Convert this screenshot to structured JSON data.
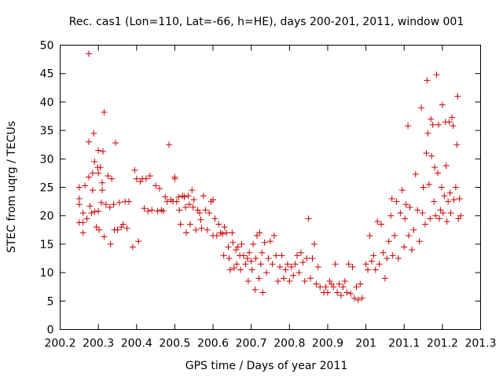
{
  "colors": {
    "series": "#cc0000",
    "axes": "#000000",
    "background": "#ffffff"
  },
  "chart_data": {
    "type": "scatter",
    "title": "Rec. cas1 (Lon=110, Lat=-66, h=HE), days 200-201, 2011, window 001",
    "xlabel": "GPS time / Days of year 2011",
    "ylabel": "STEC from uqrg / TECUs",
    "xlim": [
      200.2,
      201.3
    ],
    "ylim": [
      0,
      50
    ],
    "xticks": [
      200.2,
      200.3,
      200.4,
      200.5,
      200.6,
      200.7,
      200.8,
      200.9,
      201.0,
      201.1,
      201.2,
      201.3
    ],
    "xtick_labels": [
      "200.2",
      "200.3",
      "200.4",
      "200.5",
      "200.6",
      "200.7",
      "200.8",
      "200.9",
      "201",
      "201.1",
      "201.2",
      "201.3"
    ],
    "yticks": [
      0,
      5,
      10,
      15,
      20,
      25,
      30,
      35,
      40,
      45,
      50
    ],
    "ytick_labels": [
      "0",
      "5",
      "10",
      "15",
      "20",
      "25",
      "30",
      "35",
      "40",
      "45",
      "50"
    ],
    "marker": "+",
    "series": [
      {
        "name": "STEC",
        "points": [
          [
            200.25,
            25.0
          ],
          [
            200.25,
            23.0
          ],
          [
            200.25,
            22.0
          ],
          [
            200.25,
            18.8
          ],
          [
            200.26,
            20.5
          ],
          [
            200.26,
            18.8
          ],
          [
            200.26,
            17.0
          ],
          [
            200.265,
            25.3
          ],
          [
            200.27,
            19.5
          ],
          [
            200.275,
            48.5
          ],
          [
            200.275,
            33.0
          ],
          [
            200.275,
            26.8
          ],
          [
            200.278,
            21.7
          ],
          [
            200.282,
            20.5
          ],
          [
            200.285,
            27.5
          ],
          [
            200.285,
            24.5
          ],
          [
            200.288,
            34.5
          ],
          [
            200.29,
            29.5
          ],
          [
            200.29,
            20.7
          ],
          [
            200.295,
            18.0
          ],
          [
            200.298,
            28.5
          ],
          [
            200.3,
            27.5
          ],
          [
            200.3,
            31.5
          ],
          [
            200.3,
            20.8
          ],
          [
            200.302,
            17.5
          ],
          [
            200.305,
            28.5
          ],
          [
            200.308,
            22.3
          ],
          [
            200.31,
            24.5
          ],
          [
            200.31,
            25.8
          ],
          [
            200.312,
            31.3
          ],
          [
            200.315,
            38.2
          ],
          [
            200.315,
            16.3
          ],
          [
            200.32,
            22.0
          ],
          [
            200.325,
            27.0
          ],
          [
            200.33,
            21.5
          ],
          [
            200.332,
            15.0
          ],
          [
            200.335,
            26.5
          ],
          [
            200.34,
            22.0
          ],
          [
            200.342,
            17.5
          ],
          [
            200.345,
            32.8
          ],
          [
            200.35,
            17.5
          ],
          [
            200.355,
            22.3
          ],
          [
            200.36,
            18.0
          ],
          [
            200.365,
            18.5
          ],
          [
            200.37,
            22.5
          ],
          [
            200.375,
            17.8
          ],
          [
            200.38,
            22.5
          ],
          [
            200.39,
            14.5
          ],
          [
            200.395,
            28.0
          ],
          [
            200.4,
            26.5
          ],
          [
            200.405,
            15.5
          ],
          [
            200.41,
            26.0
          ],
          [
            200.415,
            26.5
          ],
          [
            200.42,
            21.3
          ],
          [
            200.425,
            26.5
          ],
          [
            200.43,
            20.8
          ],
          [
            200.435,
            27.0
          ],
          [
            200.44,
            21.0
          ],
          [
            200.45,
            25.3
          ],
          [
            200.455,
            20.8
          ],
          [
            200.46,
            24.8
          ],
          [
            200.465,
            21.0
          ],
          [
            200.47,
            20.8
          ],
          [
            200.475,
            23.3
          ],
          [
            200.48,
            22.5
          ],
          [
            200.485,
            32.5
          ],
          [
            200.49,
            22.8
          ],
          [
            200.495,
            22.5
          ],
          [
            200.5,
            26.8
          ],
          [
            200.5,
            26.5
          ],
          [
            200.505,
            22.5
          ],
          [
            200.51,
            23.3
          ],
          [
            200.512,
            21.0
          ],
          [
            200.515,
            18.5
          ],
          [
            200.52,
            23.5
          ],
          [
            200.525,
            23.3
          ],
          [
            200.528,
            21.5
          ],
          [
            200.53,
            17.0
          ],
          [
            200.535,
            23.5
          ],
          [
            200.538,
            22.0
          ],
          [
            200.54,
            18.5
          ],
          [
            200.545,
            24.5
          ],
          [
            200.548,
            21.5
          ],
          [
            200.55,
            22.8
          ],
          [
            200.555,
            17.5
          ],
          [
            200.56,
            21.0
          ],
          [
            200.565,
            20.5
          ],
          [
            200.568,
            19.3
          ],
          [
            200.57,
            17.8
          ],
          [
            200.575,
            23.5
          ],
          [
            200.58,
            21.0
          ],
          [
            200.585,
            17.5
          ],
          [
            200.59,
            20.5
          ],
          [
            200.595,
            22.5
          ],
          [
            200.6,
            22.8
          ],
          [
            200.6,
            16.5
          ],
          [
            200.605,
            19.5
          ],
          [
            200.61,
            16.5
          ],
          [
            200.615,
            18.5
          ],
          [
            200.62,
            17.0
          ],
          [
            200.625,
            16.8
          ],
          [
            200.628,
            13.0
          ],
          [
            200.63,
            18.0
          ],
          [
            200.635,
            17.0
          ],
          [
            200.64,
            14.5
          ],
          [
            200.642,
            12.5
          ],
          [
            200.645,
            10.5
          ],
          [
            200.65,
            17.0
          ],
          [
            200.652,
            15.3
          ],
          [
            200.655,
            10.8
          ],
          [
            200.66,
            14.0
          ],
          [
            200.662,
            11.5
          ],
          [
            200.665,
            14.5
          ],
          [
            200.67,
            13.0
          ],
          [
            200.672,
            10.5
          ],
          [
            200.675,
            15.0
          ],
          [
            200.68,
            13.0
          ],
          [
            200.685,
            11.5
          ],
          [
            200.69,
            12.5
          ],
          [
            200.692,
            8.5
          ],
          [
            200.695,
            13.5
          ],
          [
            200.7,
            12.0
          ],
          [
            200.702,
            10.5
          ],
          [
            200.705,
            15.0
          ],
          [
            200.71,
            7.0
          ],
          [
            200.712,
            12.5
          ],
          [
            200.715,
            16.5
          ],
          [
            200.72,
            9.0
          ],
          [
            200.722,
            17.0
          ],
          [
            200.725,
            11.5
          ],
          [
            200.728,
            13.5
          ],
          [
            200.73,
            6.5
          ],
          [
            200.735,
            15.3
          ],
          [
            200.74,
            10.0
          ],
          [
            200.745,
            12.5
          ],
          [
            200.75,
            15.5
          ],
          [
            200.755,
            11.5
          ],
          [
            200.76,
            16.5
          ],
          [
            200.765,
            13.0
          ],
          [
            200.77,
            8.5
          ],
          [
            200.775,
            11.0
          ],
          [
            200.78,
            13.0
          ],
          [
            200.785,
            9.0
          ],
          [
            200.79,
            10.5
          ],
          [
            200.795,
            11.5
          ],
          [
            200.8,
            8.5
          ],
          [
            200.805,
            11.0
          ],
          [
            200.81,
            9.5
          ],
          [
            200.815,
            11.5
          ],
          [
            200.82,
            13.0
          ],
          [
            200.825,
            10.0
          ],
          [
            200.83,
            13.5
          ],
          [
            200.835,
            11.8
          ],
          [
            200.84,
            8.5
          ],
          [
            200.845,
            12.5
          ],
          [
            200.85,
            19.5
          ],
          [
            200.855,
            9.0
          ],
          [
            200.86,
            12.5
          ],
          [
            200.865,
            15.0
          ],
          [
            200.87,
            8.0
          ],
          [
            200.875,
            11.0
          ],
          [
            200.88,
            7.5
          ],
          [
            200.89,
            6.5
          ],
          [
            200.895,
            7.5
          ],
          [
            200.9,
            6.5
          ],
          [
            200.905,
            8.5
          ],
          [
            200.91,
            8.0
          ],
          [
            200.915,
            7.5
          ],
          [
            200.92,
            11.5
          ],
          [
            200.925,
            6.5
          ],
          [
            200.93,
            8.0
          ],
          [
            200.935,
            6.0
          ],
          [
            200.94,
            7.5
          ],
          [
            200.945,
            8.5
          ],
          [
            200.95,
            6.5
          ],
          [
            200.955,
            11.5
          ],
          [
            200.96,
            6.3
          ],
          [
            200.965,
            11.0
          ],
          [
            200.97,
            5.5
          ],
          [
            200.975,
            7.5
          ],
          [
            200.98,
            5.2
          ],
          [
            200.985,
            8.0
          ],
          [
            200.99,
            5.5
          ],
          [
            201.0,
            11.5
          ],
          [
            201.005,
            10.5
          ],
          [
            201.01,
            16.5
          ],
          [
            201.015,
            12.0
          ],
          [
            201.02,
            13.0
          ],
          [
            201.025,
            10.5
          ],
          [
            201.03,
            19.0
          ],
          [
            201.035,
            11.5
          ],
          [
            201.04,
            18.5
          ],
          [
            201.045,
            13.5
          ],
          [
            201.05,
            9.0
          ],
          [
            201.055,
            12.5
          ],
          [
            201.06,
            15.5
          ],
          [
            201.065,
            20.0
          ],
          [
            201.068,
            23.0
          ],
          [
            201.07,
            13.0
          ],
          [
            201.075,
            16.5
          ],
          [
            201.08,
            22.5
          ],
          [
            201.085,
            12.5
          ],
          [
            201.09,
            20.5
          ],
          [
            201.095,
            24.5
          ],
          [
            201.1,
            14.5
          ],
          [
            201.102,
            19.5
          ],
          [
            201.105,
            22.0
          ],
          [
            201.11,
            35.8
          ],
          [
            201.112,
            16.5
          ],
          [
            201.115,
            21.5
          ],
          [
            201.12,
            14.0
          ],
          [
            201.125,
            17.5
          ],
          [
            201.13,
            27.3
          ],
          [
            201.135,
            21.0
          ],
          [
            201.14,
            15.5
          ],
          [
            201.145,
            39.0
          ],
          [
            201.148,
            20.5
          ],
          [
            201.15,
            25.0
          ],
          [
            201.155,
            18.5
          ],
          [
            201.158,
            31.0
          ],
          [
            201.16,
            43.8
          ],
          [
            201.162,
            34.5
          ],
          [
            201.165,
            25.5
          ],
          [
            201.168,
            19.5
          ],
          [
            201.17,
            37.0
          ],
          [
            201.172,
            30.5
          ],
          [
            201.175,
            36.0
          ],
          [
            201.178,
            22.5
          ],
          [
            201.18,
            28.5
          ],
          [
            201.182,
            20.0
          ],
          [
            201.185,
            44.8
          ],
          [
            201.188,
            27.5
          ],
          [
            201.19,
            36.0
          ],
          [
            201.192,
            19.5
          ],
          [
            201.195,
            21.0
          ],
          [
            201.198,
            25.0
          ],
          [
            201.2,
            39.5
          ],
          [
            201.202,
            20.5
          ],
          [
            201.205,
            23.5
          ],
          [
            201.208,
            36.5
          ],
          [
            201.21,
            28.8
          ],
          [
            201.212,
            19.0
          ],
          [
            201.215,
            22.5
          ],
          [
            201.218,
            36.5
          ],
          [
            201.22,
            24.0
          ],
          [
            201.222,
            20.5
          ],
          [
            201.225,
            37.3
          ],
          [
            201.228,
            35.8
          ],
          [
            201.23,
            22.8
          ],
          [
            201.235,
            25.0
          ],
          [
            201.238,
            32.5
          ],
          [
            201.24,
            41.0
          ],
          [
            201.242,
            19.5
          ],
          [
            201.245,
            23.0
          ],
          [
            201.248,
            20.0
          ]
        ]
      }
    ]
  }
}
